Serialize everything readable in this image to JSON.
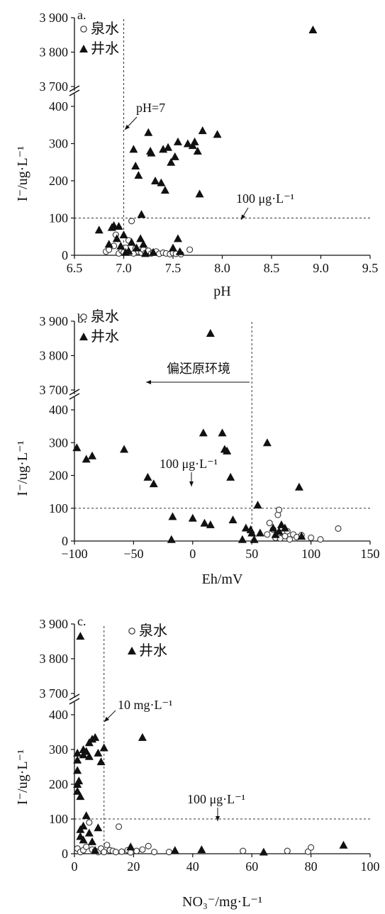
{
  "chart_data": [
    {
      "type": "scatter",
      "panel_label": "a.",
      "xlabel": "pH",
      "ylabel": "I⁻/ug·L⁻¹",
      "xlim": [
        6.5,
        9.5
      ],
      "x_ticks": [
        "6.5",
        "7.0",
        "7.5",
        "8.0",
        "8.5",
        "9.0",
        "9.5"
      ],
      "y_lower_ticks": [
        "0",
        "100",
        "200",
        "300",
        "400"
      ],
      "y_upper_ticks": [
        "3 700",
        "3 800",
        "3 900"
      ],
      "y_axis_break": [
        420,
        3700
      ],
      "legend": [
        "泉水",
        "井水"
      ],
      "annotations": [
        "pH=7",
        "100 μg·L⁻¹"
      ],
      "reference_lines": {
        "x": 7.0,
        "y": 100
      },
      "series": [
        {
          "name": "泉水",
          "marker": "open-circle",
          "points": [
            [
              6.82,
              10
            ],
            [
              6.85,
              15
            ],
            [
              6.9,
              25
            ],
            [
              6.92,
              55
            ],
            [
              6.95,
              5
            ],
            [
              6.98,
              12
            ],
            [
              7.0,
              8
            ],
            [
              7.02,
              20
            ],
            [
              7.05,
              40
            ],
            [
              7.08,
              92
            ],
            [
              7.1,
              5
            ],
            [
              7.12,
              18
            ],
            [
              7.15,
              10
            ],
            [
              7.18,
              7
            ],
            [
              7.2,
              15
            ],
            [
              7.22,
              6
            ],
            [
              7.25,
              12
            ],
            [
              7.28,
              5
            ],
            [
              7.3,
              8
            ],
            [
              7.33,
              10
            ],
            [
              7.36,
              4
            ],
            [
              7.4,
              7
            ],
            [
              7.43,
              5
            ],
            [
              7.47,
              3
            ],
            [
              7.5,
              6
            ],
            [
              7.53,
              4
            ],
            [
              7.58,
              3
            ],
            [
              7.67,
              15
            ]
          ]
        },
        {
          "name": "井水",
          "marker": "filled-triangle",
          "points": [
            [
              6.75,
              68
            ],
            [
              6.85,
              30
            ],
            [
              6.88,
              75
            ],
            [
              6.9,
              80
            ],
            [
              6.93,
              45
            ],
            [
              6.95,
              78
            ],
            [
              6.97,
              25
            ],
            [
              7.0,
              55
            ],
            [
              7.02,
              8
            ],
            [
              7.05,
              12
            ],
            [
              7.08,
              35
            ],
            [
              7.1,
              285
            ],
            [
              7.12,
              240
            ],
            [
              7.13,
              20
            ],
            [
              7.15,
              215
            ],
            [
              7.17,
              45
            ],
            [
              7.18,
              110
            ],
            [
              7.2,
              30
            ],
            [
              7.22,
              5
            ],
            [
              7.25,
              330
            ],
            [
              7.27,
              280
            ],
            [
              7.28,
              275
            ],
            [
              7.3,
              8
            ],
            [
              7.32,
              200
            ],
            [
              7.38,
              195
            ],
            [
              7.4,
              285
            ],
            [
              7.42,
              175
            ],
            [
              7.45,
              290
            ],
            [
              7.48,
              250
            ],
            [
              7.52,
              265
            ],
            [
              7.55,
              305
            ],
            [
              7.5,
              20
            ],
            [
              7.55,
              45
            ],
            [
              7.57,
              10
            ],
            [
              7.65,
              300
            ],
            [
              7.7,
              295
            ],
            [
              7.72,
              305
            ],
            [
              7.75,
              280
            ],
            [
              7.77,
              165
            ],
            [
              7.8,
              335
            ],
            [
              7.95,
              325
            ],
            [
              8.92,
              3865
            ]
          ]
        }
      ]
    },
    {
      "type": "scatter",
      "panel_label": "b.",
      "xlabel": "Eh/mV",
      "ylabel": "I⁻/ug·L⁻¹",
      "xlim": [
        -100,
        150
      ],
      "x_ticks": [
        "−100",
        "−50",
        "0",
        "50",
        "100",
        "150"
      ],
      "y_lower_ticks": [
        "0",
        "100",
        "200",
        "300",
        "400"
      ],
      "y_upper_ticks": [
        "3 700",
        "3 800",
        "3 900"
      ],
      "y_axis_break": [
        420,
        3700
      ],
      "legend": [
        "泉水",
        "井水"
      ],
      "annotations": [
        "偏还原环境",
        "100 μg·L⁻¹"
      ],
      "reference_lines": {
        "x": 50,
        "y": 100
      },
      "series": [
        {
          "name": "泉水",
          "marker": "open-circle",
          "points": [
            [
              63,
              20
            ],
            [
              65,
              55
            ],
            [
              68,
              35
            ],
            [
              70,
              10
            ],
            [
              72,
              80
            ],
            [
              73,
              95
            ],
            [
              74,
              8
            ],
            [
              76,
              25
            ],
            [
              78,
              15
            ],
            [
              80,
              30
            ],
            [
              82,
              5
            ],
            [
              85,
              20
            ],
            [
              88,
              12
            ],
            [
              92,
              18
            ],
            [
              100,
              10
            ],
            [
              108,
              5
            ],
            [
              123,
              38
            ]
          ]
        },
        {
          "name": "井水",
          "marker": "filled-triangle",
          "points": [
            [
              -98,
              285
            ],
            [
              -90,
              250
            ],
            [
              -85,
              260
            ],
            [
              -58,
              280
            ],
            [
              -38,
              195
            ],
            [
              -33,
              175
            ],
            [
              -17,
              75
            ],
            [
              -18,
              5
            ],
            [
              0,
              70
            ],
            [
              9,
              330
            ],
            [
              10,
              55
            ],
            [
              15,
              50
            ],
            [
              15,
              3865
            ],
            [
              25,
              330
            ],
            [
              27,
              280
            ],
            [
              29,
              275
            ],
            [
              32,
              195
            ],
            [
              34,
              65
            ],
            [
              42,
              5
            ],
            [
              45,
              40
            ],
            [
              49,
              35
            ],
            [
              50,
              25
            ],
            [
              52,
              5
            ],
            [
              55,
              110
            ],
            [
              57,
              25
            ],
            [
              63,
              300
            ],
            [
              68,
              40
            ],
            [
              70,
              20
            ],
            [
              73,
              30
            ],
            [
              75,
              50
            ],
            [
              78,
              40
            ],
            [
              90,
              165
            ],
            [
              92,
              15
            ]
          ]
        }
      ]
    },
    {
      "type": "scatter",
      "panel_label": "c.",
      "xlabel": "NO₃⁻/mg·L⁻¹",
      "ylabel": "I⁻/ug·L⁻¹",
      "xlim": [
        0,
        100
      ],
      "x_ticks": [
        "0",
        "20",
        "40",
        "60",
        "80",
        "100"
      ],
      "y_lower_ticks": [
        "0",
        "100",
        "200",
        "300",
        "400"
      ],
      "y_upper_ticks": [
        "3 700",
        "3 800",
        "3 900"
      ],
      "y_axis_break": [
        420,
        3700
      ],
      "legend": [
        "泉水",
        "井水"
      ],
      "annotations": [
        "10 mg·L⁻¹",
        "100 μg·L⁻¹"
      ],
      "reference_lines": {
        "x": 10,
        "y": 100
      },
      "series": [
        {
          "name": "泉水",
          "marker": "open-circle",
          "points": [
            [
              1,
              15
            ],
            [
              2,
              5
            ],
            [
              3,
              10
            ],
            [
              4,
              20
            ],
            [
              5,
              90
            ],
            [
              6,
              12
            ],
            [
              7,
              8
            ],
            [
              8,
              5
            ],
            [
              9,
              15
            ],
            [
              10,
              5
            ],
            [
              11,
              25
            ],
            [
              12,
              10
            ],
            [
              13,
              8
            ],
            [
              14,
              5
            ],
            [
              15,
              78
            ],
            [
              16,
              6
            ],
            [
              18,
              10
            ],
            [
              19,
              4
            ],
            [
              21,
              8
            ],
            [
              23,
              12
            ],
            [
              25,
              22
            ],
            [
              27,
              5
            ],
            [
              32,
              5
            ],
            [
              57,
              8
            ],
            [
              72,
              8
            ],
            [
              79,
              6
            ],
            [
              80,
              18
            ]
          ]
        },
        {
          "name": "井水",
          "marker": "filled-triangle",
          "points": [
            [
              1,
              290
            ],
            [
              1,
              270
            ],
            [
              1,
              240
            ],
            [
              1,
              200
            ],
            [
              1,
              180
            ],
            [
              1.5,
              210
            ],
            [
              2,
              165
            ],
            [
              2,
              70
            ],
            [
              2,
              50
            ],
            [
              2,
              3865
            ],
            [
              3,
              285
            ],
            [
              3,
              300
            ],
            [
              3,
              80
            ],
            [
              3,
              40
            ],
            [
              4,
              295
            ],
            [
              4,
              110
            ],
            [
              5,
              320
            ],
            [
              5,
              280
            ],
            [
              5,
              60
            ],
            [
              6,
              330
            ],
            [
              6,
              35
            ],
            [
              7,
              335
            ],
            [
              7,
              10
            ],
            [
              8,
              290
            ],
            [
              8,
              75
            ],
            [
              9,
              265
            ],
            [
              10,
              305
            ],
            [
              19,
              20
            ],
            [
              23,
              335
            ],
            [
              34,
              10
            ],
            [
              43,
              12
            ],
            [
              64,
              5
            ],
            [
              91,
              25
            ]
          ]
        }
      ]
    }
  ]
}
